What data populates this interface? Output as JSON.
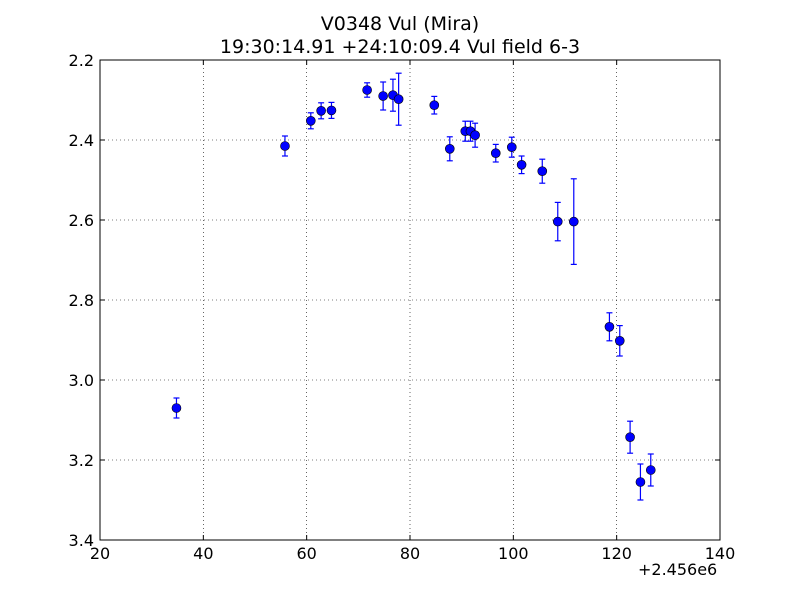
{
  "chart_data": {
    "type": "scatter",
    "title": "V0348 Vul (Mira)",
    "subtitle": "19:30:14.91 +24:10:09.4 Vul field 6-3",
    "xlabel": "",
    "ylabel": "",
    "x_offset_label": "+2.456e6",
    "xlim": [
      20,
      140
    ],
    "ylim": [
      3.4,
      2.2
    ],
    "y_inverted": true,
    "grid": true,
    "marker_color": "#0000ff",
    "x_ticks": [
      "20",
      "40",
      "60",
      "80",
      "100",
      "120",
      "140"
    ],
    "y_ticks": [
      "2.2",
      "2.4",
      "2.6",
      "2.8",
      "3.0",
      "3.2",
      "3.4"
    ],
    "points": [
      {
        "x": 34.8,
        "y": 3.07,
        "err": 0.025
      },
      {
        "x": 55.8,
        "y": 2.415,
        "err": 0.025
      },
      {
        "x": 60.8,
        "y": 2.352,
        "err": 0.02
      },
      {
        "x": 62.8,
        "y": 2.327,
        "err": 0.02
      },
      {
        "x": 64.8,
        "y": 2.326,
        "err": 0.02
      },
      {
        "x": 71.7,
        "y": 2.275,
        "err": 0.018
      },
      {
        "x": 74.8,
        "y": 2.29,
        "err": 0.035
      },
      {
        "x": 76.7,
        "y": 2.288,
        "err": 0.04
      },
      {
        "x": 77.8,
        "y": 2.298,
        "err": 0.065
      },
      {
        "x": 84.7,
        "y": 2.313,
        "err": 0.022
      },
      {
        "x": 87.7,
        "y": 2.422,
        "err": 0.03
      },
      {
        "x": 90.7,
        "y": 2.378,
        "err": 0.025
      },
      {
        "x": 91.7,
        "y": 2.378,
        "err": 0.025
      },
      {
        "x": 92.6,
        "y": 2.388,
        "err": 0.03
      },
      {
        "x": 96.6,
        "y": 2.433,
        "err": 0.022
      },
      {
        "x": 99.7,
        "y": 2.418,
        "err": 0.025
      },
      {
        "x": 101.6,
        "y": 2.462,
        "err": 0.022
      },
      {
        "x": 105.6,
        "y": 2.478,
        "err": 0.03
      },
      {
        "x": 108.6,
        "y": 2.604,
        "err": 0.048
      },
      {
        "x": 111.7,
        "y": 2.604,
        "err": 0.107
      },
      {
        "x": 118.6,
        "y": 2.867,
        "err": 0.035
      },
      {
        "x": 120.6,
        "y": 2.902,
        "err": 0.038
      },
      {
        "x": 122.6,
        "y": 3.143,
        "err": 0.04
      },
      {
        "x": 124.6,
        "y": 3.255,
        "err": 0.045
      },
      {
        "x": 126.6,
        "y": 3.225,
        "err": 0.04
      }
    ]
  }
}
